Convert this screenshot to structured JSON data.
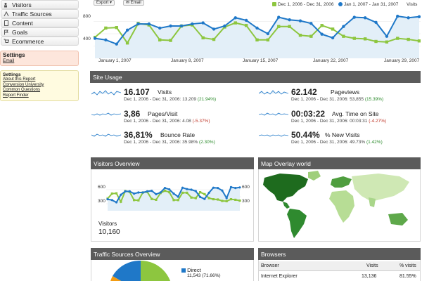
{
  "nav": {
    "items": [
      {
        "label": "Visitors"
      },
      {
        "label": "Traffic Sources"
      },
      {
        "label": "Content"
      },
      {
        "label": "Goals"
      },
      {
        "label": "Ecommerce"
      }
    ],
    "settings_title": "Settings",
    "settings_link": "Email",
    "help_title": "Settings",
    "help_links": [
      "About this Report",
      "Conversion University",
      "Common Questions",
      "Report Finder"
    ]
  },
  "toolbar": {
    "export_label": "Export",
    "email_label": "Email"
  },
  "top_chart": {
    "legend_a": "Dec 1, 2006 - Dec 31, 2006",
    "legend_b": "Jan 1, 2007 - Jan 31, 2007",
    "metric_label": "Visits",
    "y_ticks": [
      "800",
      "400"
    ],
    "x_ticks": [
      "January 1, 2007",
      "January 8, 2007",
      "January 15, 2007",
      "January 22, 2007",
      "January 29, 2007"
    ],
    "colors": {
      "a": "#8dc63f",
      "b": "#1f78c8"
    },
    "series_a": [
      380,
      560,
      570,
      270,
      650,
      620,
      330,
      320,
      600,
      620,
      370,
      340,
      580,
      660,
      610,
      330,
      330,
      590,
      590,
      420,
      400,
      610,
      540,
      400,
      360,
      350,
      300,
      290,
      360,
      340,
      310
    ],
    "series_b": [
      360,
      330,
      250,
      520,
      640,
      640,
      560,
      600,
      600,
      640,
      660,
      540,
      600,
      760,
      710,
      560,
      450,
      770,
      720,
      700,
      650,
      440,
      370,
      590,
      770,
      760,
      670,
      400,
      790,
      760,
      780
    ]
  },
  "site_usage": {
    "title": "Site Usage",
    "metrics": [
      {
        "value": "16.107",
        "label": "Visits",
        "sub": "Dec 1, 2006 - Dec 31, 2006: 13,209",
        "delta": "(21.94%)",
        "trend": "pos"
      },
      {
        "value": "62.142",
        "label": "Pageviews",
        "sub": "Dec 1, 2006 - Dec 31, 2006: 53,855",
        "delta": "(15.39%)",
        "trend": "pos"
      },
      {
        "value": "3,86",
        "label": "Pages/Visit",
        "sub": "Dec 1, 2006 - Dec 31, 2006: 4.08",
        "delta": "(-5.37%)",
        "trend": "neg"
      },
      {
        "value": "00:03:22",
        "label": "Avg. Time on Site",
        "sub": "Dec 1, 2006 - Dec 31, 2006: 00:03:31",
        "delta": "(-4.27%)",
        "trend": "neg"
      },
      {
        "value": "36,81%",
        "label": "Bounce Rate",
        "sub": "Dec 1, 2006 - Dec 31, 2006: 35.98%",
        "delta": "(2.30%)",
        "trend": "pos"
      },
      {
        "value": "50.44%",
        "label": "% New Visits",
        "sub": "Dec 1, 2006 - Dec 31, 2006: 49.73%",
        "delta": "(1.42%)",
        "trend": "pos"
      }
    ]
  },
  "visitors_overview": {
    "title": "Visitors Overview",
    "y_ticks": [
      "600",
      "300"
    ],
    "y_ticks_right": [
      "600",
      "300"
    ],
    "label": "Visitors",
    "value": "10,160"
  },
  "map_overlay": {
    "title": "Map Overlay world"
  },
  "traffic_sources": {
    "title": "Traffic Sources Overview",
    "legend_label": "Direct",
    "legend_value": "11,543 (71.66%)"
  },
  "browsers": {
    "title": "Browsers",
    "columns": [
      "Browser",
      "Visits",
      "% visits"
    ],
    "rows": [
      {
        "browser": "Internet Explorer",
        "visits": "13,136",
        "pct": "81.55%"
      }
    ]
  }
}
